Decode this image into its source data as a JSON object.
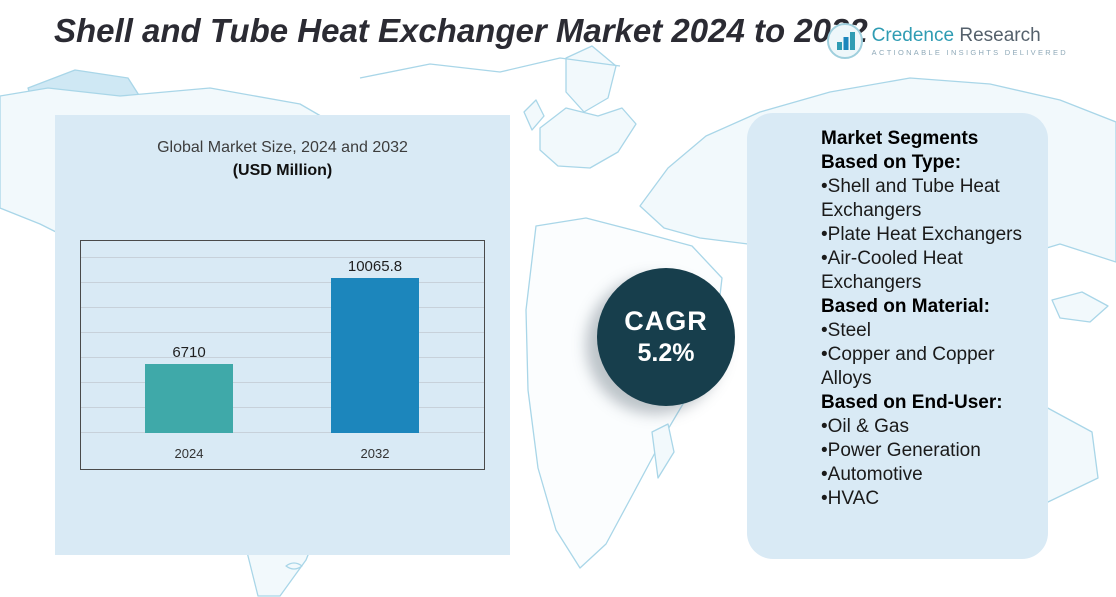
{
  "header": {
    "title": "Shell and Tube Heat Exchanger Market 2024 to 2032",
    "logo": {
      "name_primary": "Credence",
      "name_secondary": "Research",
      "tagline": "Actionable Insights Delivered"
    }
  },
  "chart_data": {
    "type": "bar",
    "title": "Global Market Size, 2024 and 2032",
    "subtitle": "(USD Million)",
    "categories": [
      "2024",
      "2032"
    ],
    "values": [
      6710,
      10065.8
    ],
    "bar_colors": [
      "#3fa9a9",
      "#1c86bc"
    ],
    "ylim": [
      4000,
      11200
    ],
    "grid": true,
    "legend": false
  },
  "cagr": {
    "label": "CAGR",
    "value": "5.2%"
  },
  "segments": {
    "title": "Market Segments",
    "groups": [
      {
        "heading": "Based on Type:",
        "items": [
          "Shell and Tube Heat Exchangers",
          "Plate Heat Exchangers",
          "Air-Cooled Heat Exchangers"
        ]
      },
      {
        "heading": "Based on Material:",
        "items": [
          "Steel",
          "Copper and Copper Alloys"
        ]
      },
      {
        "heading": "Based on End-User:",
        "items": [
          "Oil & Gas",
          "Power Generation",
          "Automotive",
          "HVAC"
        ]
      }
    ]
  },
  "colors": {
    "bar_2024": "#3fa9a9",
    "bar_2032": "#1c86bc",
    "cagr_circle": "#173e4c",
    "panel_background": "#d9eaf5",
    "map_outline": "#a9d6e8"
  }
}
